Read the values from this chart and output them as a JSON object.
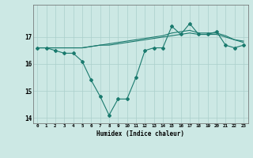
{
  "xlabel": "Humidex (Indice chaleur)",
  "x": [
    0,
    1,
    2,
    3,
    4,
    5,
    6,
    7,
    8,
    9,
    10,
    11,
    12,
    13,
    14,
    15,
    16,
    17,
    18,
    19,
    20,
    21,
    22,
    23
  ],
  "line1": [
    16.6,
    16.6,
    16.5,
    16.4,
    16.4,
    16.1,
    15.4,
    14.8,
    14.1,
    14.7,
    14.7,
    15.5,
    16.5,
    16.6,
    16.6,
    17.4,
    17.1,
    17.5,
    17.1,
    17.1,
    17.2,
    16.7,
    16.6,
    16.7
  ],
  "line2": [
    16.6,
    16.6,
    16.6,
    16.6,
    16.6,
    16.6,
    16.65,
    16.7,
    16.7,
    16.75,
    16.8,
    16.85,
    16.9,
    16.95,
    17.0,
    17.05,
    17.1,
    17.15,
    17.1,
    17.1,
    17.1,
    17.0,
    16.9,
    16.85
  ],
  "line3": [
    16.6,
    16.6,
    16.6,
    16.6,
    16.6,
    16.6,
    16.65,
    16.7,
    16.75,
    16.8,
    16.85,
    16.9,
    16.95,
    17.0,
    17.05,
    17.15,
    17.2,
    17.25,
    17.15,
    17.15,
    17.15,
    17.05,
    16.9,
    16.8
  ],
  "ylim": [
    13.8,
    18.2
  ],
  "yticks": [
    14,
    15,
    16,
    17
  ],
  "xticks": [
    0,
    1,
    2,
    3,
    4,
    5,
    6,
    7,
    8,
    9,
    10,
    11,
    12,
    13,
    14,
    15,
    16,
    17,
    18,
    19,
    20,
    21,
    22,
    23
  ],
  "line_color": "#1a7a6e",
  "bg_color": "#cce8e4",
  "grid_color": "#aacfcb"
}
